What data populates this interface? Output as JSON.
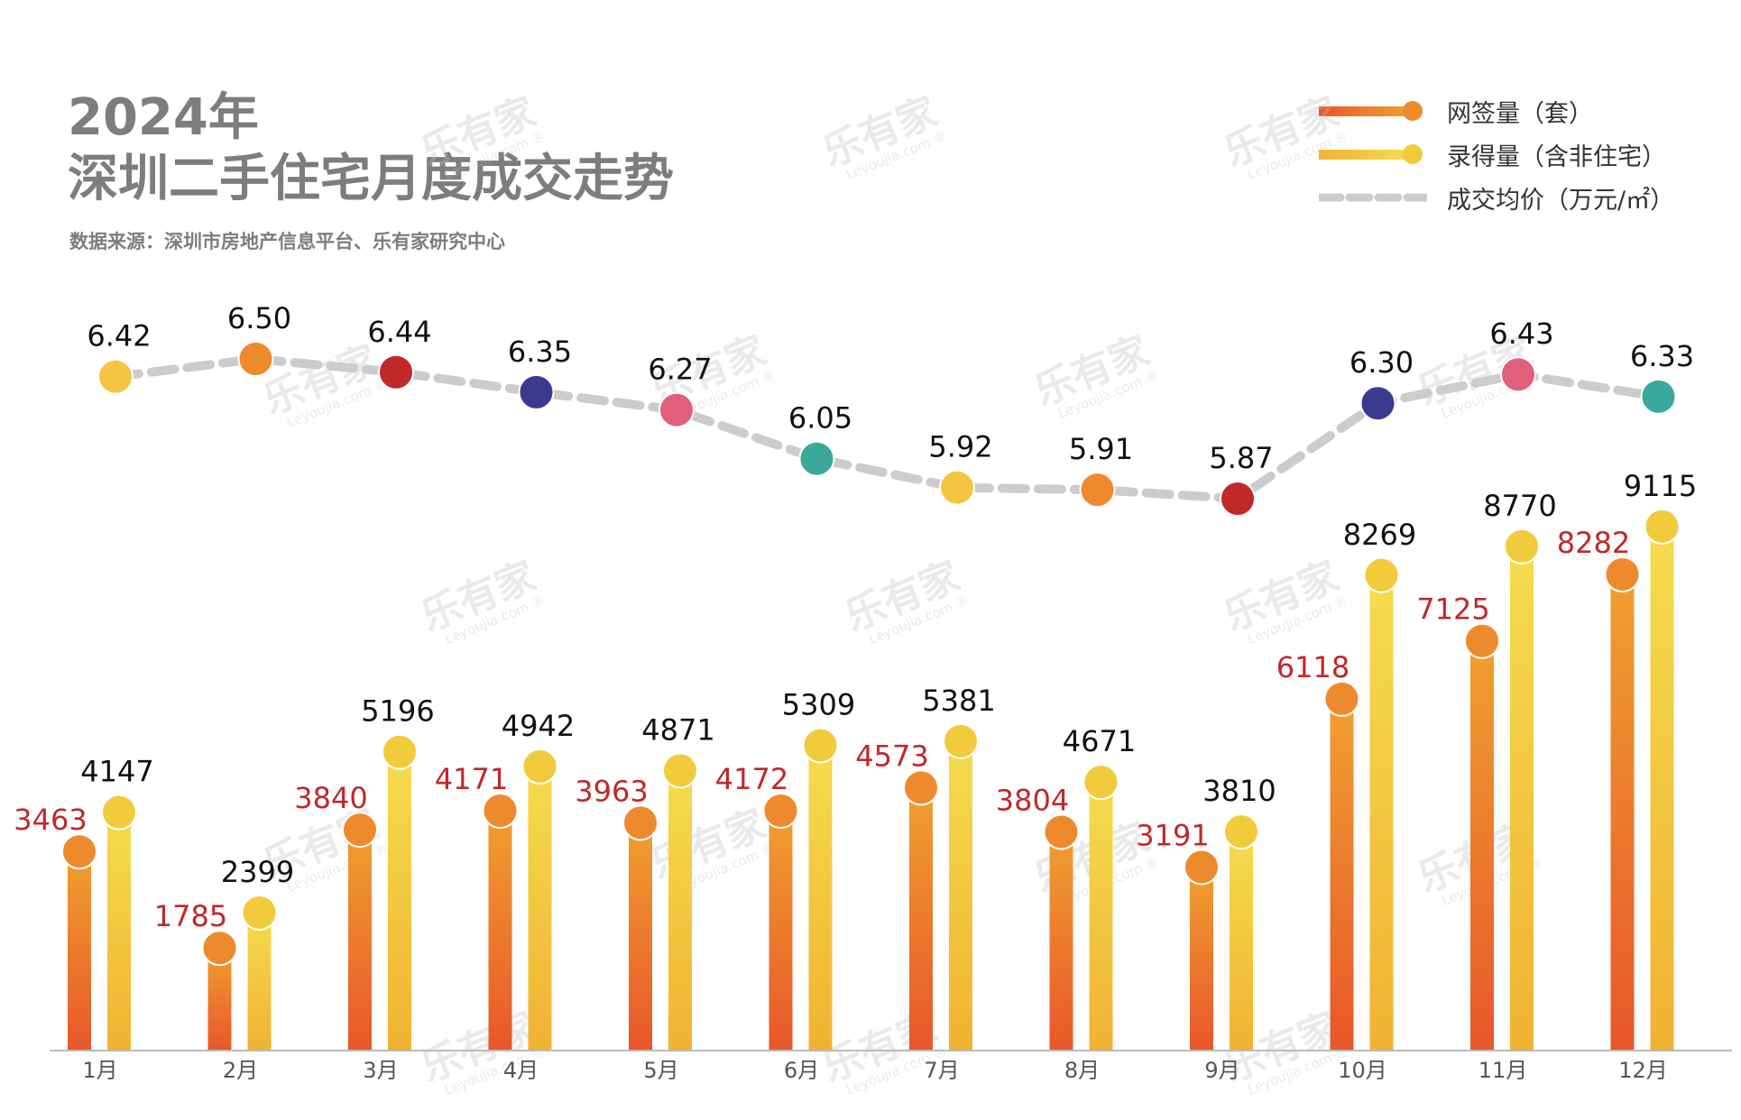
{
  "header": {
    "year_title": "2024年",
    "main_title": "深圳二手住宅月度成交走势",
    "source": "数据来源：深圳市房地产信息平台、乐有家研究中心"
  },
  "legend": {
    "signed": "网签量（套）",
    "recorded": "录得量（含非住宅）",
    "price": "成交均价（万元/㎡）"
  },
  "watermark": {
    "text": "乐有家",
    "sub": "Leyoujia.com ®"
  },
  "colors": {
    "signed_top": "#f0a030",
    "signed_bottom": "#e8562a",
    "recorded_top": "#f4dc4e",
    "recorded_bottom": "#f1b232",
    "signed_label": "#c0282a",
    "recorded_label": "#111111",
    "price_line": "#cccccc",
    "axis": "#bbbbbb",
    "price_dots": [
      "#f5c542",
      "#ee8a2e",
      "#c0282a",
      "#3b3a8f",
      "#e0607a",
      "#3aa89a",
      "#f5c542",
      "#ee8a2e",
      "#c0282a",
      "#3b3a8f",
      "#e0607a",
      "#3aa89a"
    ]
  },
  "chart_data": {
    "type": "bar",
    "categories": [
      "1月",
      "2月",
      "3月",
      "4月",
      "5月",
      "6月",
      "7月",
      "8月",
      "9月",
      "10月",
      "11月",
      "12月"
    ],
    "series": [
      {
        "name": "网签量（套）",
        "values": [
          3463,
          1785,
          3840,
          4171,
          3963,
          4172,
          4573,
          3804,
          3191,
          6118,
          7125,
          8282
        ]
      },
      {
        "name": "录得量（含非住宅）",
        "values": [
          4147,
          2399,
          5196,
          4942,
          4871,
          5309,
          5381,
          4671,
          3810,
          8269,
          8770,
          9115
        ]
      }
    ],
    "line_series": {
      "name": "成交均价（万元/㎡）",
      "values": [
        6.42,
        6.5,
        6.44,
        6.35,
        6.27,
        6.05,
        5.92,
        5.91,
        5.87,
        6.3,
        6.43,
        6.33
      ]
    }
  }
}
